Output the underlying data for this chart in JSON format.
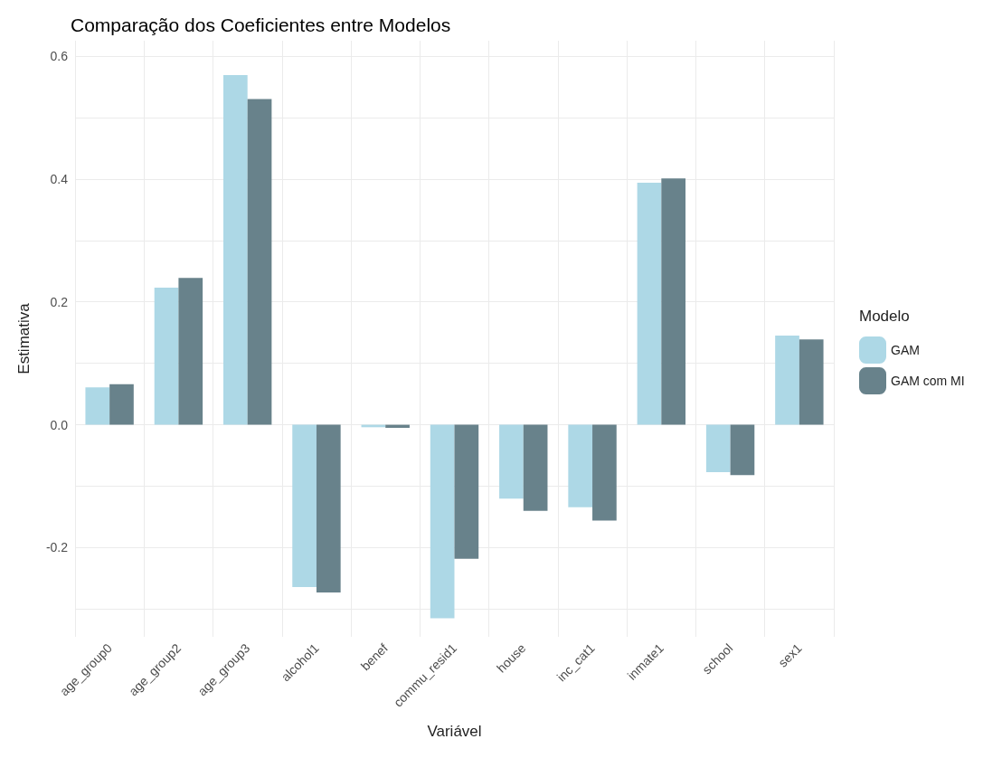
{
  "chart_data": {
    "type": "bar",
    "title": "Comparação dos Coeficientes entre Modelos",
    "xlabel": "Variável",
    "ylabel": "Estimativa",
    "legend_title": "Modelo",
    "categories": [
      "age_group0",
      "age_group2",
      "age_group3",
      "alcohol1",
      "benef",
      "commu_resid1",
      "house",
      "inc_cat1",
      "inmate1",
      "school",
      "sex1"
    ],
    "series": [
      {
        "name": "GAM",
        "color": "#add8e6",
        "values": [
          0.061,
          0.223,
          0.569,
          -0.264,
          -0.004,
          -0.315,
          -0.12,
          -0.134,
          0.394,
          -0.077,
          0.145
        ]
      },
      {
        "name": "GAM com MI",
        "color": "#68828b",
        "values": [
          0.066,
          0.239,
          0.53,
          -0.273,
          -0.005,
          -0.218,
          -0.14,
          -0.156,
          0.401,
          -0.082,
          0.139
        ]
      }
    ],
    "ylim": [
      -0.345,
      0.625
    ],
    "yticks": [
      {
        "value": -0.3,
        "label": null
      },
      {
        "value": -0.2,
        "label": "-0.2"
      },
      {
        "value": -0.1,
        "label": null
      },
      {
        "value": 0,
        "label": "0.0"
      },
      {
        "value": 0.1,
        "label": null
      },
      {
        "value": 0.2,
        "label": "0.2"
      },
      {
        "value": 0.3,
        "label": null
      },
      {
        "value": 0.4,
        "label": "0.4"
      },
      {
        "value": 0.5,
        "label": null
      },
      {
        "value": 0.6,
        "label": "0.6"
      }
    ],
    "grid": true,
    "legend": "right"
  }
}
